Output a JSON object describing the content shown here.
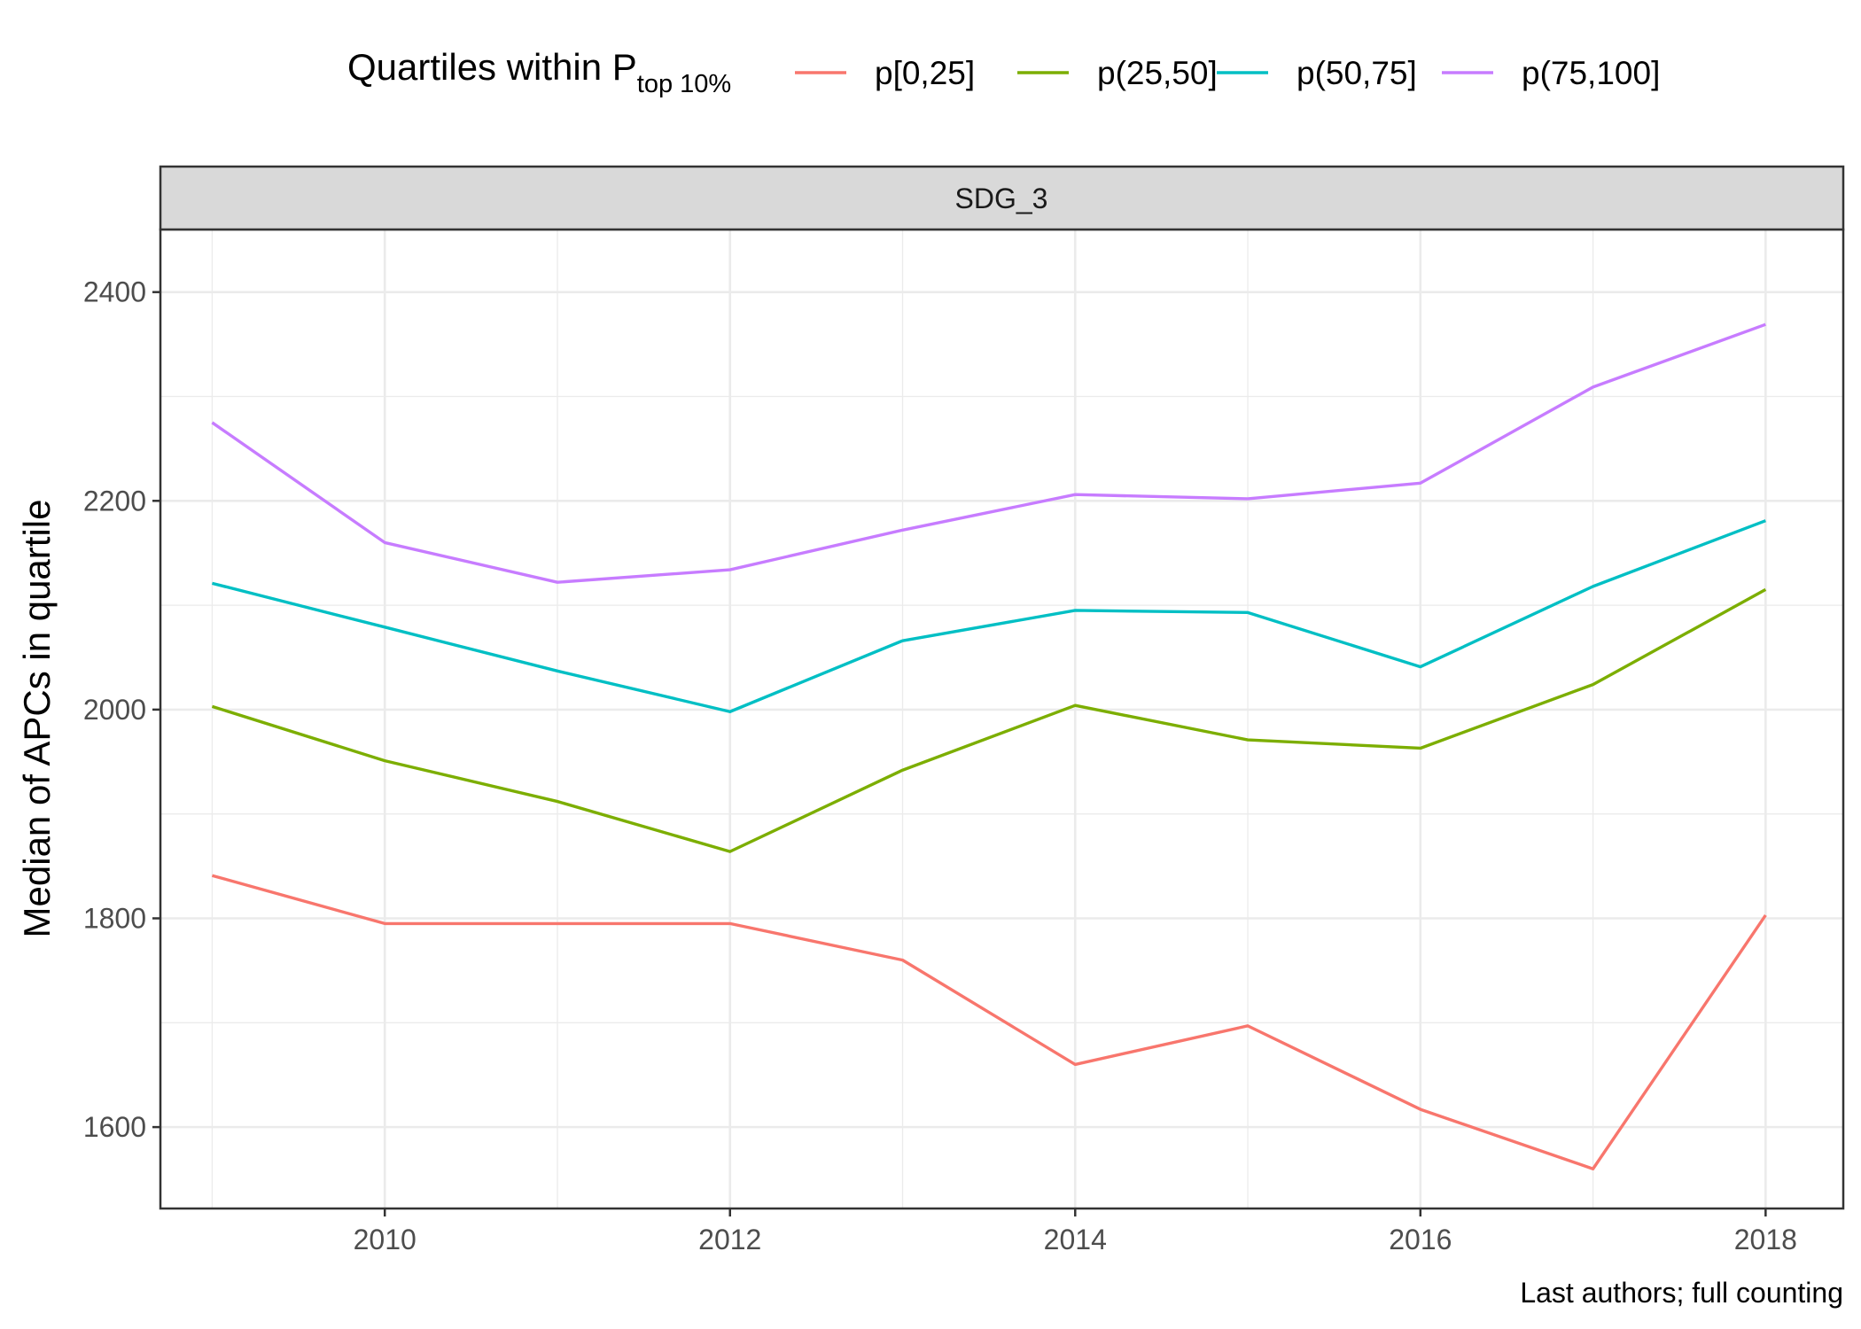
{
  "chart_data": {
    "type": "line",
    "legend": {
      "title_main": "Quartiles within P",
      "title_sub": "top 10%",
      "placement": "top"
    },
    "facet_label": "SDG_3",
    "ylabel": "Median of APCs in quartile",
    "xlabel": "",
    "caption": "Last authors; full counting",
    "xlim": [
      2008.7,
      2018.45
    ],
    "ylim": [
      1522,
      2460
    ],
    "x_ticks": [
      2010,
      2012,
      2014,
      2016,
      2018
    ],
    "x_tick_labels": [
      "2010",
      "2012",
      "2014",
      "2016",
      "2018"
    ],
    "y_ticks": [
      1600,
      1800,
      2000,
      2200,
      2400
    ],
    "y_tick_labels": [
      "1600",
      "1800",
      "2000",
      "2200",
      "2400"
    ],
    "grid": true,
    "x": [
      2009,
      2010,
      2011,
      2012,
      2013,
      2014,
      2015,
      2016,
      2017,
      2018
    ],
    "series": [
      {
        "name": "p[0,25]",
        "color": "#F8766D",
        "values": [
          1841,
          1795,
          1795,
          1795,
          1760,
          1660,
          1697,
          1617,
          1560,
          1803
        ]
      },
      {
        "name": "p(25,50]",
        "color": "#7CAE00",
        "values": [
          2003,
          1951,
          1912,
          1864,
          1942,
          2004,
          1971,
          1963,
          2024,
          2115
        ]
      },
      {
        "name": "p(50,75]",
        "color": "#00BFC4",
        "values": [
          2121,
          2079,
          2037,
          1998,
          2066,
          2095,
          2093,
          2041,
          2118,
          2181
        ]
      },
      {
        "name": "p(75,100]",
        "color": "#C77CFF",
        "values": [
          2275,
          2160,
          2122,
          2134,
          2172,
          2206,
          2202,
          2217,
          2309,
          2369
        ]
      }
    ]
  }
}
